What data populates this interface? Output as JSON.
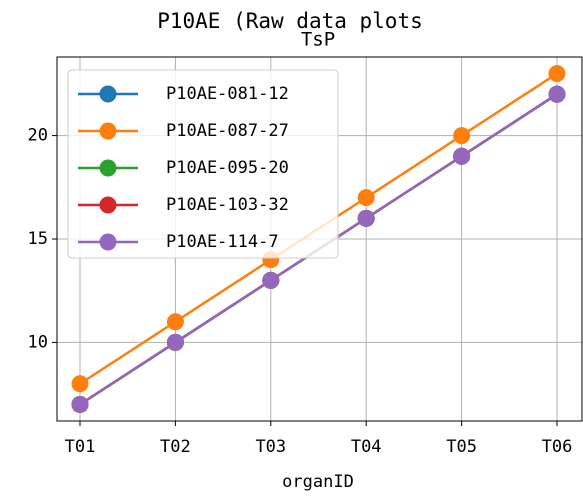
{
  "chart_data": {
    "type": "line",
    "suptitle": "P10AE (Raw data plots",
    "title": "TsP",
    "x_label": "organID",
    "categories": [
      "T01",
      "T02",
      "T03",
      "T04",
      "T05",
      "T06"
    ],
    "series": [
      {
        "name": "P10AE-081-12",
        "color": "#1f77b4",
        "values": [
          7,
          10,
          13,
          16,
          19,
          22
        ]
      },
      {
        "name": "P10AE-087-27",
        "color": "#ff7f0e",
        "values": [
          8,
          11,
          14,
          17,
          20,
          23
        ]
      },
      {
        "name": "P10AE-095-20",
        "color": "#2ca02c",
        "values": [
          7,
          10,
          13,
          16,
          19,
          22
        ]
      },
      {
        "name": "P10AE-103-32",
        "color": "#d62728",
        "values": [
          7,
          10,
          13,
          16,
          19,
          22
        ]
      },
      {
        "name": "P10AE-114-7",
        "color": "#9467bd",
        "values": [
          7,
          10,
          13,
          16,
          19,
          22
        ]
      }
    ],
    "ylim": [
      6.2,
      23.8
    ],
    "yticks": [
      10,
      15,
      20
    ],
    "grid": true,
    "legend": "upper left"
  }
}
